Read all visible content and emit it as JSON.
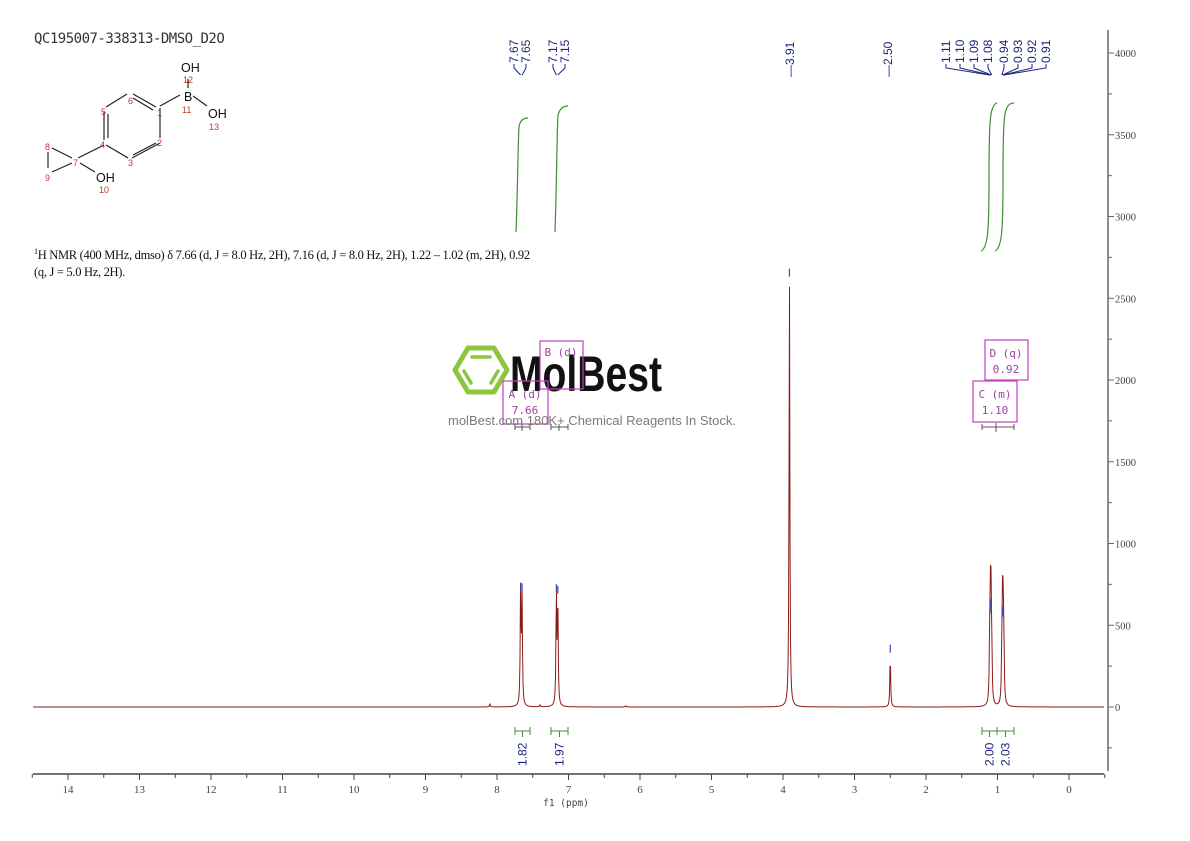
{
  "header": {
    "sample_id": "QC195007-338313-DMSO_D2O"
  },
  "structure": {
    "labels": {
      "oh_top": "OH",
      "b": "B",
      "oh_right": "OH",
      "oh_bottom": "OH"
    },
    "atom_numbers": [
      "1",
      "2",
      "3",
      "4",
      "5",
      "6",
      "7",
      "8",
      "9",
      "10",
      "11",
      "12",
      "13"
    ]
  },
  "description": {
    "nucleus_sup": "1",
    "text_line1": "H NMR (400 MHz, dmso) δ 7.66 (d, J = 8.0 Hz, 2H), 7.16 (d, J = 8.0 Hz, 2H), 1.22 – 1.02 (m, 2H), 0.92",
    "text_line2": "(q, J = 5.0 Hz, 2H)."
  },
  "watermark": {
    "brand": "MolBest",
    "tagline": "molBest.com 180K+ Chemical Reagents In Stock."
  },
  "chart_data": {
    "type": "line",
    "title": "QC195007-338313-DMSO_D2O",
    "xlabel": "f1 (ppm)",
    "ylabel": "",
    "xlim": [
      14.5,
      -0.5
    ],
    "ylim": [
      -400,
      4200
    ],
    "x_ticks": [
      "14",
      "13",
      "12",
      "11",
      "10",
      "9",
      "8",
      "7",
      "6",
      "5",
      "4",
      "3",
      "2",
      "1",
      "0"
    ],
    "y_ticks": [
      "4000",
      "3500",
      "3000",
      "2500",
      "2000",
      "1500",
      "1000",
      "500",
      "0"
    ],
    "grid": false,
    "peak_labels_top": [
      "7.67",
      "7.65",
      "7.17",
      "7.15",
      "3.91",
      "2.50",
      "1.11",
      "1.10",
      "1.09",
      "1.08",
      "0.94",
      "0.93",
      "0.92",
      "0.91"
    ],
    "peaks": [
      {
        "ppm": 8.1,
        "intensity": 20
      },
      {
        "ppm": 7.67,
        "intensity": 700
      },
      {
        "ppm": 7.65,
        "intensity": 690
      },
      {
        "ppm": 7.4,
        "intensity": 12
      },
      {
        "ppm": 7.17,
        "intensity": 690
      },
      {
        "ppm": 7.15,
        "intensity": 680
      },
      {
        "ppm": 6.2,
        "intensity": 8
      },
      {
        "ppm": 3.91,
        "intensity": 2620
      },
      {
        "ppm": 2.5,
        "intensity": 320
      },
      {
        "ppm": 1.11,
        "intensity": 300
      },
      {
        "ppm": 1.1,
        "intensity": 600
      },
      {
        "ppm": 1.09,
        "intensity": 560
      },
      {
        "ppm": 1.08,
        "intensity": 260
      },
      {
        "ppm": 0.94,
        "intensity": 250
      },
      {
        "ppm": 0.93,
        "intensity": 540
      },
      {
        "ppm": 0.92,
        "intensity": 560
      },
      {
        "ppm": 0.91,
        "intensity": 250
      }
    ],
    "multiplets": [
      {
        "label": "A (d)",
        "shift": "7.66"
      },
      {
        "label": "B (d)",
        "shift": "7.16"
      },
      {
        "label": "C (m)",
        "shift": "1.10"
      },
      {
        "label": "D (q)",
        "shift": "0.92"
      }
    ],
    "integrals": [
      {
        "range": [
          7.75,
          7.55
        ],
        "value": "1.82"
      },
      {
        "range": [
          7.25,
          7.05
        ],
        "value": "1.97"
      },
      {
        "range": [
          1.22,
          1.02
        ],
        "value": "2.00"
      },
      {
        "range": [
          1.02,
          0.82
        ],
        "value": "2.03"
      }
    ],
    "colors": {
      "spectrum": "#8b1a1a",
      "integral": "#3a8a2a",
      "peak_label": "#1a237e",
      "multiplet_box": "#c040c0",
      "axis": "#555555"
    }
  }
}
